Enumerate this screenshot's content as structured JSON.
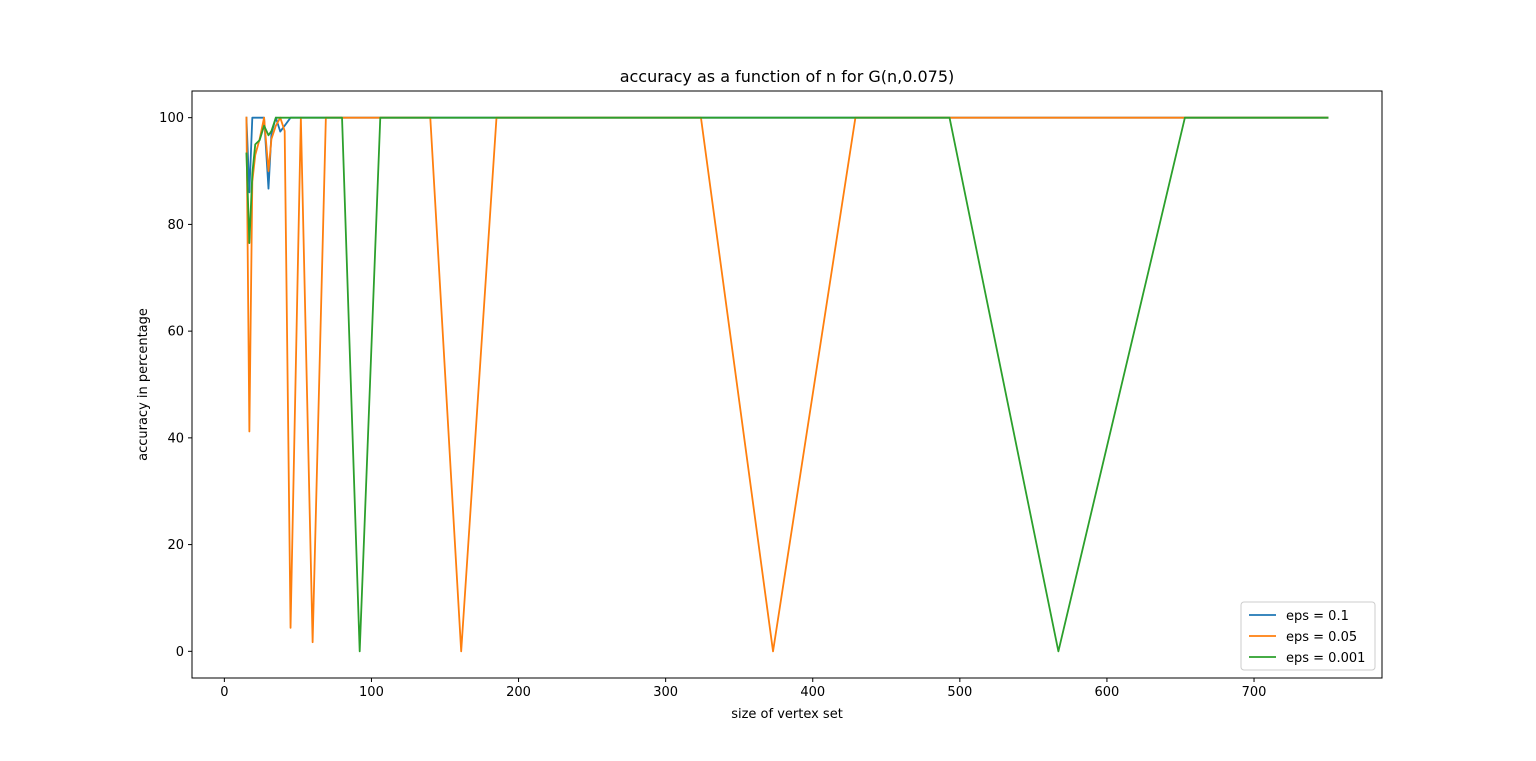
{
  "chart_data": {
    "type": "line",
    "title": "accuracy as a function of n for G(n,0.075)",
    "xlabel": "size of vertex set",
    "ylabel": "accuracy in percentage",
    "xlim": [
      -22,
      787
    ],
    "ylim": [
      -5,
      105
    ],
    "xticks": [
      0,
      100,
      200,
      300,
      400,
      500,
      600,
      700
    ],
    "yticks": [
      0,
      20,
      40,
      60,
      80,
      100
    ],
    "grid": false,
    "legend_position": "lower right",
    "series": [
      {
        "name": "eps = 0.1",
        "color": "#1f77b4",
        "x": [
          15,
          17,
          19,
          21,
          24,
          27,
          30,
          32,
          35,
          38,
          41,
          45,
          750
        ],
        "y": [
          100,
          86,
          100,
          100,
          100,
          100,
          86.7,
          97,
          100,
          97.4,
          98.5,
          100,
          100
        ]
      },
      {
        "name": "eps = 0.05",
        "color": "#ff7f0e",
        "x": [
          15,
          17,
          19,
          21,
          24,
          27,
          30,
          32,
          35,
          38,
          41,
          45,
          52,
          60,
          69,
          140,
          161,
          185,
          324,
          373,
          429,
          750
        ],
        "y": [
          100,
          41.2,
          88,
          93,
          96,
          100,
          90,
          96,
          98.5,
          100,
          97.5,
          4.4,
          100,
          1.7,
          100,
          100,
          0,
          100,
          100,
          0,
          100,
          100
        ]
      },
      {
        "name": "eps = 0.001",
        "color": "#2ca02c",
        "x": [
          15,
          17,
          19,
          21,
          24,
          27,
          30,
          32,
          35,
          38,
          41,
          45,
          80,
          92,
          106,
          493,
          567,
          653,
          750
        ],
        "y": [
          93.3,
          76.5,
          89.5,
          95,
          95.8,
          98.5,
          96.7,
          97.5,
          100,
          100,
          100,
          100,
          100,
          0,
          100,
          100,
          0,
          100,
          100
        ]
      }
    ]
  }
}
